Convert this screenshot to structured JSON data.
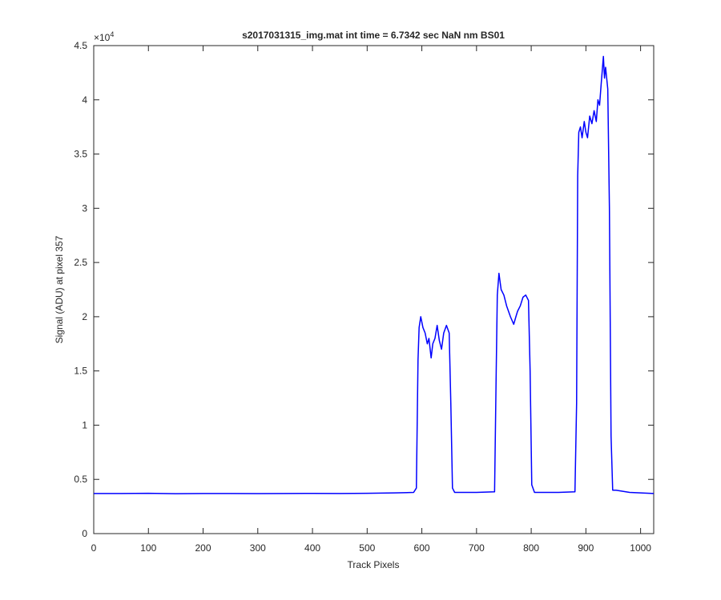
{
  "chart_data": {
    "type": "line",
    "title": "s2017031315_img.mat int time = 6.7342 sec  NaN nm BS01",
    "x_label": "Track Pixels",
    "y_label": "Signal (ADU) at pixel 357",
    "y_multiplier": {
      "base": "×10",
      "exponent": "4"
    },
    "color": "#0000ff",
    "x": [
      0,
      50,
      100,
      150,
      200,
      250,
      300,
      350,
      400,
      450,
      500,
      550,
      585,
      590,
      593,
      595,
      598,
      602,
      606,
      610,
      613,
      617,
      620,
      624,
      628,
      632,
      636,
      640,
      645,
      650,
      653,
      656,
      660,
      700,
      733,
      736,
      738,
      741,
      745,
      750,
      755,
      762,
      768,
      772,
      775,
      780,
      785,
      790,
      795,
      798,
      801,
      806,
      850,
      880,
      883,
      885,
      887,
      890,
      893,
      897,
      900,
      903,
      907,
      911,
      915,
      919,
      922,
      925,
      928,
      932,
      934,
      936,
      940,
      943,
      946,
      949,
      955,
      980,
      1000,
      1024
    ],
    "values": [
      0.37,
      0.37,
      0.372,
      0.368,
      0.37,
      0.37,
      0.369,
      0.37,
      0.371,
      0.37,
      0.372,
      0.375,
      0.38,
      0.42,
      1.6,
      1.9,
      2.0,
      1.9,
      1.85,
      1.75,
      1.8,
      1.62,
      1.75,
      1.8,
      1.92,
      1.78,
      1.7,
      1.85,
      1.92,
      1.85,
      1.2,
      0.42,
      0.38,
      0.38,
      0.385,
      1.5,
      2.2,
      2.4,
      2.25,
      2.2,
      2.1,
      2.0,
      1.93,
      2.0,
      2.05,
      2.1,
      2.18,
      2.2,
      2.15,
      1.5,
      0.45,
      0.38,
      0.38,
      0.385,
      1.2,
      3.3,
      3.7,
      3.75,
      3.65,
      3.8,
      3.7,
      3.65,
      3.85,
      3.78,
      3.9,
      3.8,
      4.0,
      3.95,
      4.15,
      4.4,
      4.2,
      4.3,
      4.1,
      3.0,
      0.9,
      0.4,
      0.4,
      0.38,
      0.375,
      0.37
    ],
    "xlim": [
      0,
      1024
    ],
    "xticks": [
      0,
      100,
      200,
      300,
      400,
      500,
      600,
      700,
      800,
      900,
      1000
    ],
    "ylim": [
      0,
      4.5
    ],
    "yticks": [
      0,
      0.5,
      1,
      1.5,
      2,
      2.5,
      3,
      3.5,
      4,
      4.5
    ],
    "grid": false
  }
}
